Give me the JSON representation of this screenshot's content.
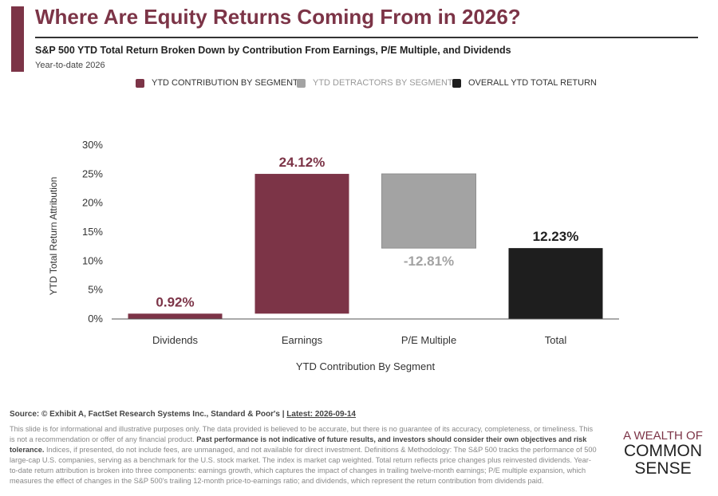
{
  "header": {
    "title": "Where Are Equity Returns Coming From in 2026?",
    "subtitle": "S&P 500 YTD Total Return Broken Down by Contribution From Earnings, P/E Multiple, and Dividends",
    "date_note": "Year-to-date 2026"
  },
  "legend": {
    "items": [
      {
        "label": "YTD CONTRIBUTION BY SEGMENT",
        "color": "#7c3447"
      },
      {
        "label": "YTD DETRACTORS BY SEGMENT",
        "color": "#a3a3a3"
      },
      {
        "label": "OVERALL YTD TOTAL RETURN",
        "color": "#1e1e1e"
      }
    ]
  },
  "chart_data": {
    "type": "bar",
    "subtype": "waterfall",
    "categories": [
      "Dividends",
      "Earnings",
      "P/E Multiple",
      "Total"
    ],
    "values": [
      0.92,
      24.12,
      -12.81,
      12.23
    ],
    "data_labels": [
      "0.92%",
      "24.12%",
      "-12.81%",
      "12.23%"
    ],
    "segment_kind": [
      "contribution",
      "contribution",
      "detractor",
      "total"
    ],
    "colors": {
      "contribution": "#7c3447",
      "detractor": "#a3a3a3",
      "total": "#1e1e1e"
    },
    "xlabel": "YTD Contribution By Segment",
    "ylabel": "YTD Total Return Attribution",
    "ylim": [
      0,
      30
    ],
    "yticks": [
      0,
      5,
      10,
      15,
      20,
      25,
      30
    ],
    "ytick_labels": [
      "0%",
      "5%",
      "10%",
      "15%",
      "20%",
      "25%",
      "30%"
    ],
    "grid": false
  },
  "footer": {
    "source_prefix": "Source: © Exhibit A, FactSet Research Systems Inc., Standard & Poor's | ",
    "source_latest": "Latest: 2026-09-14",
    "disc_1": "This slide is for informational and illustrative purposes only. The data provided is believed to be accurate, but there is no guarantee of its accuracy, completeness, or timeliness. This is not a recommendation or offer of any financial product. ",
    "disc_bold": "Past performance is not indicative of future results, and investors should consider their own objectives and risk tolerance.",
    "disc_2": " Indices, if presented, do not include fees, are unmanaged, and not available for direct investment. Definitions & Methodology: The S&P 500 tracks the performance of 500 large-cap U.S. companies, serving as a benchmark for the U.S. stock market. The index is market cap weighted. Total return reflects price changes plus reinvested dividends. Year-to-date return attribution is broken into three components: earnings growth, which captures the impact of changes in trailing twelve-month earnings; P/E multiple expansion, which measures the effect of changes in the S&P 500's trailing 12-month price-to-earnings ratio; and dividends, which represent the return contribution from dividends paid."
  },
  "logo": {
    "line1": "A WEALTH OF",
    "line2": "COMMON",
    "line3": "SENSE"
  }
}
